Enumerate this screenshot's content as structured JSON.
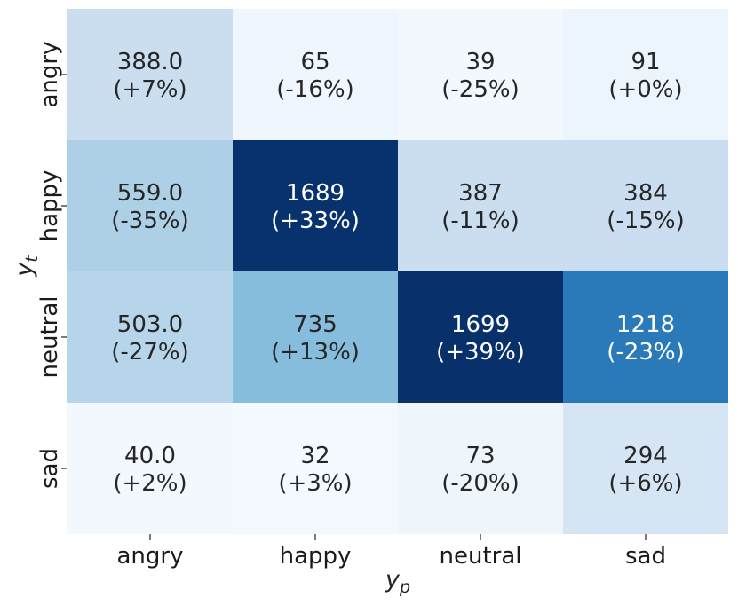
{
  "chart_data": {
    "type": "heatmap",
    "title": "",
    "xlabel": "y",
    "xlabel_sub": "p",
    "ylabel": "y",
    "ylabel_sub": "t",
    "x_categories": [
      "angry",
      "happy",
      "neutral",
      "sad"
    ],
    "y_categories": [
      "angry",
      "happy",
      "neutral",
      "sad"
    ],
    "values": [
      [
        388.0,
        65,
        39,
        91
      ],
      [
        559.0,
        1689,
        387,
        384
      ],
      [
        503.0,
        735,
        1699,
        1218
      ],
      [
        40.0,
        32,
        73,
        294
      ]
    ],
    "value_labels": [
      [
        "388.0",
        "65",
        "39",
        "91"
      ],
      [
        "559.0",
        "1689",
        "387",
        "384"
      ],
      [
        "503.0",
        "735",
        "1699",
        "1218"
      ],
      [
        "40.0",
        "32",
        "73",
        "294"
      ]
    ],
    "change_labels": [
      [
        "(+7%)",
        "(-16%)",
        "(-25%)",
        "(+0%)"
      ],
      [
        "(-35%)",
        "(+33%)",
        "(-11%)",
        "(-15%)"
      ],
      [
        "(-27%)",
        "(+13%)",
        "(+39%)",
        "(-23%)"
      ],
      [
        "(+2%)",
        "(+3%)",
        "(-20%)",
        "(+6%)"
      ]
    ],
    "colormap": "Blues",
    "vmin": 0,
    "vmax": 1700,
    "colorbar": false,
    "grid": false
  }
}
